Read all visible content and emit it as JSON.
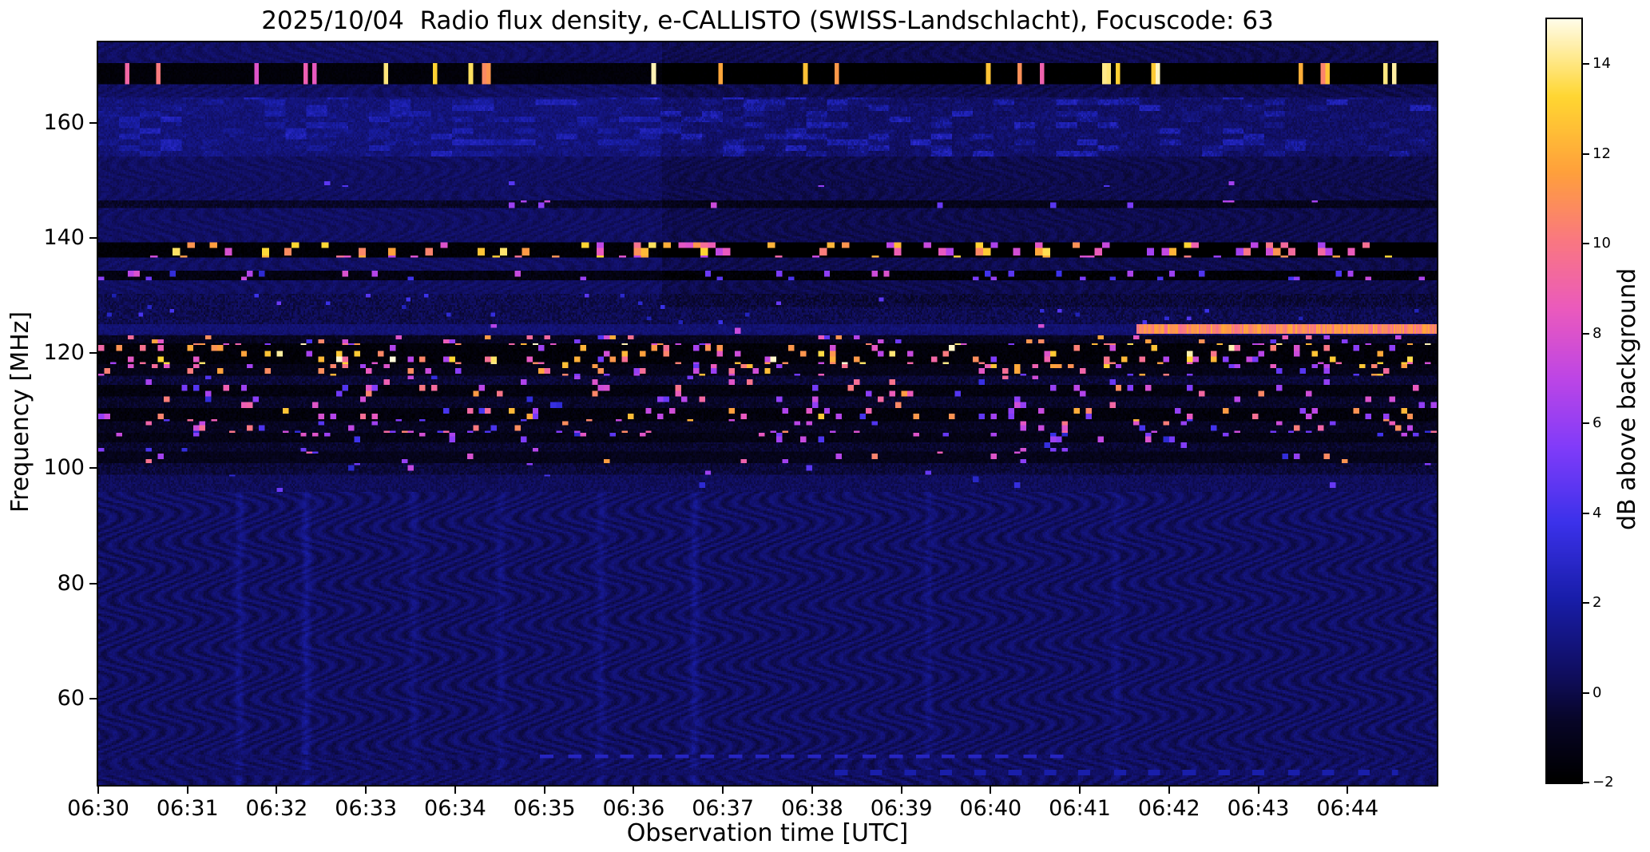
{
  "chart_data": {
    "type": "heatmap",
    "subtype": "radio-spectrogram",
    "title": "2025/10/04  Radio flux density, e-CALLISTO (SWISS-Landschlacht), Focuscode: 63",
    "xlabel": "Observation time [UTC]",
    "ylabel": "Frequency [MHz]",
    "colorbar_label": "dB above background",
    "x_ticks": [
      "06:30",
      "06:31",
      "06:32",
      "06:33",
      "06:34",
      "06:35",
      "06:36",
      "06:37",
      "06:38",
      "06:39",
      "06:40",
      "06:41",
      "06:42",
      "06:43",
      "06:44"
    ],
    "x_range_minutes": [
      0,
      15
    ],
    "y_ticks": [
      60,
      80,
      100,
      120,
      140,
      160
    ],
    "freq_range_mhz": [
      45,
      174
    ],
    "value_range_db": [
      -2,
      15
    ],
    "colorbar_ticks": [
      -2,
      0,
      2,
      4,
      6,
      8,
      10,
      12,
      14
    ],
    "colormap_stops": [
      [
        0.0,
        0,
        0,
        0
      ],
      [
        0.08,
        8,
        6,
        40
      ],
      [
        0.14,
        16,
        14,
        95
      ],
      [
        0.24,
        25,
        30,
        170
      ],
      [
        0.34,
        60,
        50,
        235
      ],
      [
        0.44,
        130,
        60,
        250
      ],
      [
        0.53,
        190,
        70,
        230
      ],
      [
        0.62,
        235,
        90,
        190
      ],
      [
        0.71,
        250,
        120,
        130
      ],
      [
        0.8,
        255,
        160,
        60
      ],
      [
        0.9,
        255,
        215,
        50
      ],
      [
        1.0,
        255,
        252,
        230
      ]
    ],
    "seed": 63,
    "background": {
      "base_db": 0.45,
      "noise_db": 0.3,
      "wave_db_low": 0.5,
      "wave_db_high": 0.25,
      "wave_boundary_mhz": 96
    },
    "dim_region": {
      "f_above_mhz": 128,
      "u_from": 0.42,
      "delta_db": -0.4
    },
    "streaks": [
      {
        "u": 0.105,
        "db": 0.7
      },
      {
        "u": 0.155,
        "db": 0.9
      },
      {
        "u": 0.235,
        "db": 0.45
      },
      {
        "u": 0.3,
        "db": 0.5
      },
      {
        "u": 0.375,
        "db": 0.6
      },
      {
        "u": 0.445,
        "db": 0.8
      },
      {
        "u": 0.62,
        "db": 0.5
      },
      {
        "u": 0.76,
        "db": 0.45
      }
    ],
    "bands": [
      {
        "name": "rfi-band-168",
        "f_lo": 166.8,
        "f_hi": 170.2,
        "base_db": -1.7,
        "noise_db": 0.2,
        "burst_prob": 0.1,
        "burst_db_min": 8,
        "burst_db_max": 15,
        "block_w": 3,
        "block_h": 0
      },
      {
        "name": "blue-patches-160",
        "f_lo": 154.0,
        "f_hi": 164.5,
        "base_db": 0.9,
        "noise_db": 0.45,
        "blotch_amp": 1.4
      },
      {
        "name": "line-149",
        "f_lo": 148.8,
        "f_hi": 149.7,
        "base_db": 0.4,
        "noise_db": 0.4,
        "burst_prob": 0.01,
        "burst_db_min": 4,
        "burst_db_max": 7,
        "block_w": 4,
        "block_h": 3
      },
      {
        "name": "line-146",
        "f_lo": 145.3,
        "f_hi": 146.4,
        "base_db": -0.7,
        "noise_db": 0.5,
        "burst_prob": 0.025,
        "burst_db_min": 3,
        "burst_db_max": 8,
        "block_w": 4,
        "block_h": 3
      },
      {
        "name": "rfi-band-137",
        "f_lo": 136.6,
        "f_hi": 139.2,
        "base_db": -1.8,
        "noise_db": 0.25,
        "burst_prob": 0.17,
        "burst_db_min": 6,
        "burst_db_max": 14,
        "block_w": 5,
        "block_h": 4
      },
      {
        "name": "rfi-line-133",
        "f_lo": 132.6,
        "f_hi": 134.3,
        "base_db": -1.4,
        "noise_db": 0.4,
        "burst_prob": 0.09,
        "burst_db_min": 3,
        "burst_db_max": 8,
        "block_w": 4,
        "block_h": 3
      },
      {
        "name": "mottled-127",
        "f_lo": 125.0,
        "f_hi": 130.5,
        "base_db": 0.1,
        "noise_db": 0.6,
        "burst_prob": 0.012,
        "burst_db_min": 2,
        "burst_db_max": 5,
        "block_w": 3,
        "block_h": 2
      },
      {
        "name": "drift-line-124",
        "f_lo": 123.4,
        "f_hi": 124.9,
        "base_db": 0.8,
        "noise_db": 0.4,
        "line_from": 0.775,
        "line_db": 9.5,
        "burst_prob": 0.006,
        "burst_db_min": 5,
        "burst_db_max": 8,
        "block_w": 4,
        "block_h": 3
      },
      {
        "name": "rfi-122",
        "f_lo": 121.6,
        "f_hi": 123.2,
        "base_db": -0.9,
        "noise_db": 0.5,
        "burst_prob": 0.1,
        "burst_db_min": 4,
        "burst_db_max": 12,
        "block_w": 4,
        "block_h": 3
      },
      {
        "name": "rfi-120",
        "f_lo": 118.0,
        "f_hi": 121.6,
        "base_db": -1.7,
        "noise_db": 0.3,
        "burst_prob": 0.17,
        "burst_db_min": 5,
        "burst_db_max": 15,
        "block_w": 4,
        "block_h": 3
      },
      {
        "name": "rfi-117",
        "f_lo": 116.2,
        "f_hi": 118.0,
        "base_db": -1.2,
        "noise_db": 0.4,
        "burst_prob": 0.12,
        "burst_db_min": 4,
        "burst_db_max": 13,
        "block_w": 4,
        "block_h": 3
      },
      {
        "name": "rfi-115",
        "f_lo": 114.4,
        "f_hi": 116.2,
        "base_db": -0.4,
        "noise_db": 0.5,
        "burst_prob": 0.05,
        "burst_db_min": 3,
        "burst_db_max": 10,
        "block_w": 4,
        "block_h": 3
      },
      {
        "name": "rfi-113",
        "f_lo": 112.6,
        "f_hi": 114.4,
        "base_db": -1.5,
        "noise_db": 0.35,
        "burst_prob": 0.08,
        "burst_db_min": 4,
        "burst_db_max": 12,
        "block_w": 4,
        "block_h": 3
      },
      {
        "name": "rfi-111",
        "f_lo": 110.6,
        "f_hi": 112.6,
        "base_db": -0.7,
        "noise_db": 0.5,
        "burst_prob": 0.07,
        "burst_db_min": 3,
        "burst_db_max": 11,
        "block_w": 4,
        "block_h": 3
      },
      {
        "name": "rfi-109",
        "f_lo": 108.2,
        "f_hi": 110.6,
        "base_db": -1.6,
        "noise_db": 0.35,
        "burst_prob": 0.1,
        "burst_db_min": 4,
        "burst_db_max": 13,
        "block_w": 4,
        "block_h": 3
      },
      {
        "name": "rfi-107",
        "f_lo": 106.2,
        "f_hi": 108.2,
        "base_db": -0.9,
        "noise_db": 0.5,
        "burst_prob": 0.07,
        "burst_db_min": 3,
        "burst_db_max": 11,
        "block_w": 4,
        "block_h": 3
      },
      {
        "name": "rfi-105",
        "f_lo": 104.6,
        "f_hi": 106.2,
        "base_db": -1.3,
        "noise_db": 0.4,
        "burst_prob": 0.05,
        "burst_db_min": 3,
        "burst_db_max": 9,
        "block_w": 4,
        "block_h": 3
      },
      {
        "name": "rfi-103",
        "f_lo": 102.8,
        "f_hi": 104.6,
        "base_db": -0.6,
        "noise_db": 0.5,
        "burst_prob": 0.03,
        "burst_db_min": 3,
        "burst_db_max": 11,
        "block_w": 4,
        "block_h": 3
      },
      {
        "name": "rfi-101",
        "f_lo": 100.8,
        "f_hi": 102.8,
        "base_db": -1.1,
        "noise_db": 0.4,
        "burst_prob": 0.025,
        "burst_db_min": 3,
        "burst_db_max": 12,
        "block_w": 4,
        "block_h": 3
      },
      {
        "name": "band-100",
        "f_lo": 99.0,
        "f_hi": 100.8,
        "base_db": -0.3,
        "noise_db": 0.5,
        "burst_prob": 0.015,
        "burst_db_min": 2,
        "burst_db_max": 8,
        "block_w": 4,
        "block_h": 3
      },
      {
        "name": "band-97",
        "f_lo": 96.0,
        "f_hi": 99.0,
        "base_db": 0.3,
        "noise_db": 0.45,
        "burst_prob": 0.006,
        "burst_db_min": 2,
        "burst_db_max": 6,
        "block_w": 4,
        "block_h": 3
      },
      {
        "name": "dashed-line-50",
        "f_lo": 49.5,
        "f_hi": 50.4,
        "base_db": 0.5,
        "noise_db": 0.3,
        "dash": {
          "u_from": 0.33,
          "u_to": 0.72,
          "period": 0.02,
          "duty": 0.5,
          "db": 2.2
        }
      },
      {
        "name": "dashed-line-47",
        "f_lo": 46.8,
        "f_hi": 47.5,
        "base_db": 0.5,
        "noise_db": 0.3,
        "dash": {
          "u_from": 0.55,
          "u_to": 0.97,
          "period": 0.026,
          "duty": 0.35,
          "db": 1.6
        }
      }
    ]
  }
}
